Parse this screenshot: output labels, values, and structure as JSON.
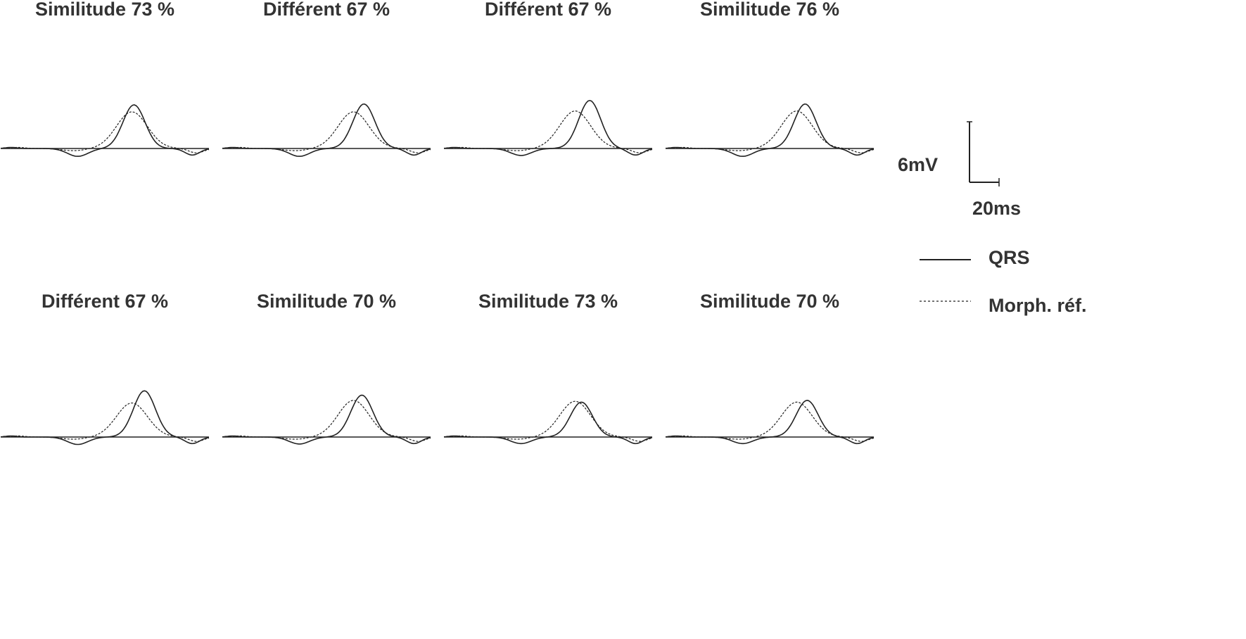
{
  "chart_data": {
    "type": "line",
    "grid": false,
    "legend_placement": "right",
    "legend": [
      {
        "label": "QRS",
        "style": "solid"
      },
      {
        "label": "Morph. réf.",
        "style": "dashed"
      }
    ],
    "scale_bar": {
      "amplitude_label": "6mV",
      "time_label": "20ms"
    },
    "colors": {
      "trace": "#222222",
      "text": "#333333"
    },
    "panels": [
      {
        "title": "Similitude 73 %",
        "peak": 1.0,
        "ref_peak": 0.84,
        "dip": 0.18,
        "lag": 0.0
      },
      {
        "title": "Différent 67 %",
        "peak": 1.02,
        "ref_peak": 0.84,
        "dip": 0.18,
        "lag": 0.04
      },
      {
        "title": "Différent 67 %",
        "peak": 1.1,
        "ref_peak": 0.86,
        "dip": 0.16,
        "lag": 0.06
      },
      {
        "title": "Similitude 76 %",
        "peak": 1.02,
        "ref_peak": 0.86,
        "dip": 0.18,
        "lag": 0.03
      },
      {
        "title": "Différent 67 %",
        "peak": 1.06,
        "ref_peak": 0.78,
        "dip": 0.17,
        "lag": 0.05
      },
      {
        "title": "Similitude 70 %",
        "peak": 0.96,
        "ref_peak": 0.84,
        "dip": 0.16,
        "lag": 0.03
      },
      {
        "title": "Similitude 73 %",
        "peak": 0.8,
        "ref_peak": 0.82,
        "dip": 0.15,
        "lag": 0.02
      },
      {
        "title": "Similitude 70 %",
        "peak": 0.84,
        "ref_peak": 0.8,
        "dip": 0.15,
        "lag": 0.04
      }
    ]
  }
}
